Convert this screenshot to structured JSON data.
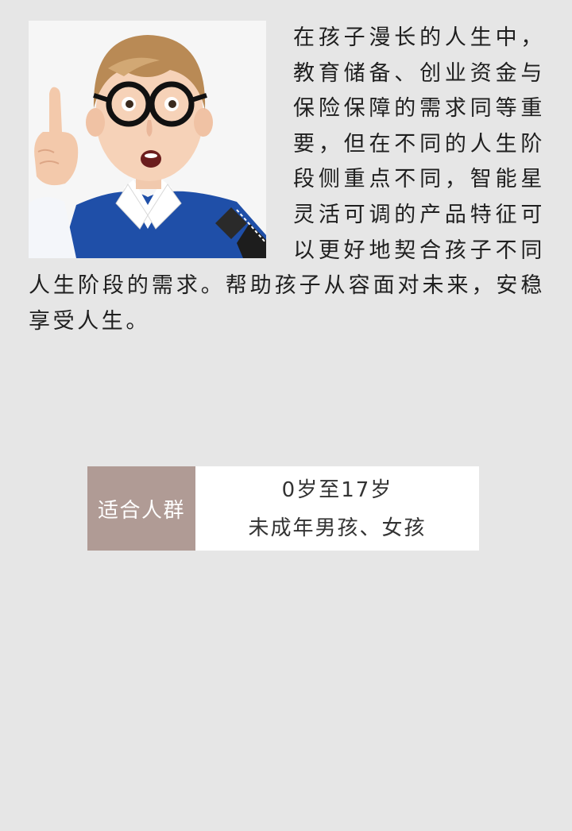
{
  "intro": {
    "photo_icon": "surprised-boy-with-glasses-photo",
    "text": "在孩子漫长的人生中，教育储备、创业资金与保险保障的需求同等重要，但在不同的人生阶段侧重点不同，智能星灵活可调的产品特征可以更好地契合孩子不同人生阶段的需求。帮助孩子从容面对未来，安稳享受人生。"
  },
  "audience": {
    "label": "适合人群",
    "age_range": "0岁至17岁",
    "gender": "未成年男孩、女孩"
  },
  "colors": {
    "background": "#e6e6e6",
    "label_background": "#b09b95",
    "text": "#1f1f1f"
  }
}
